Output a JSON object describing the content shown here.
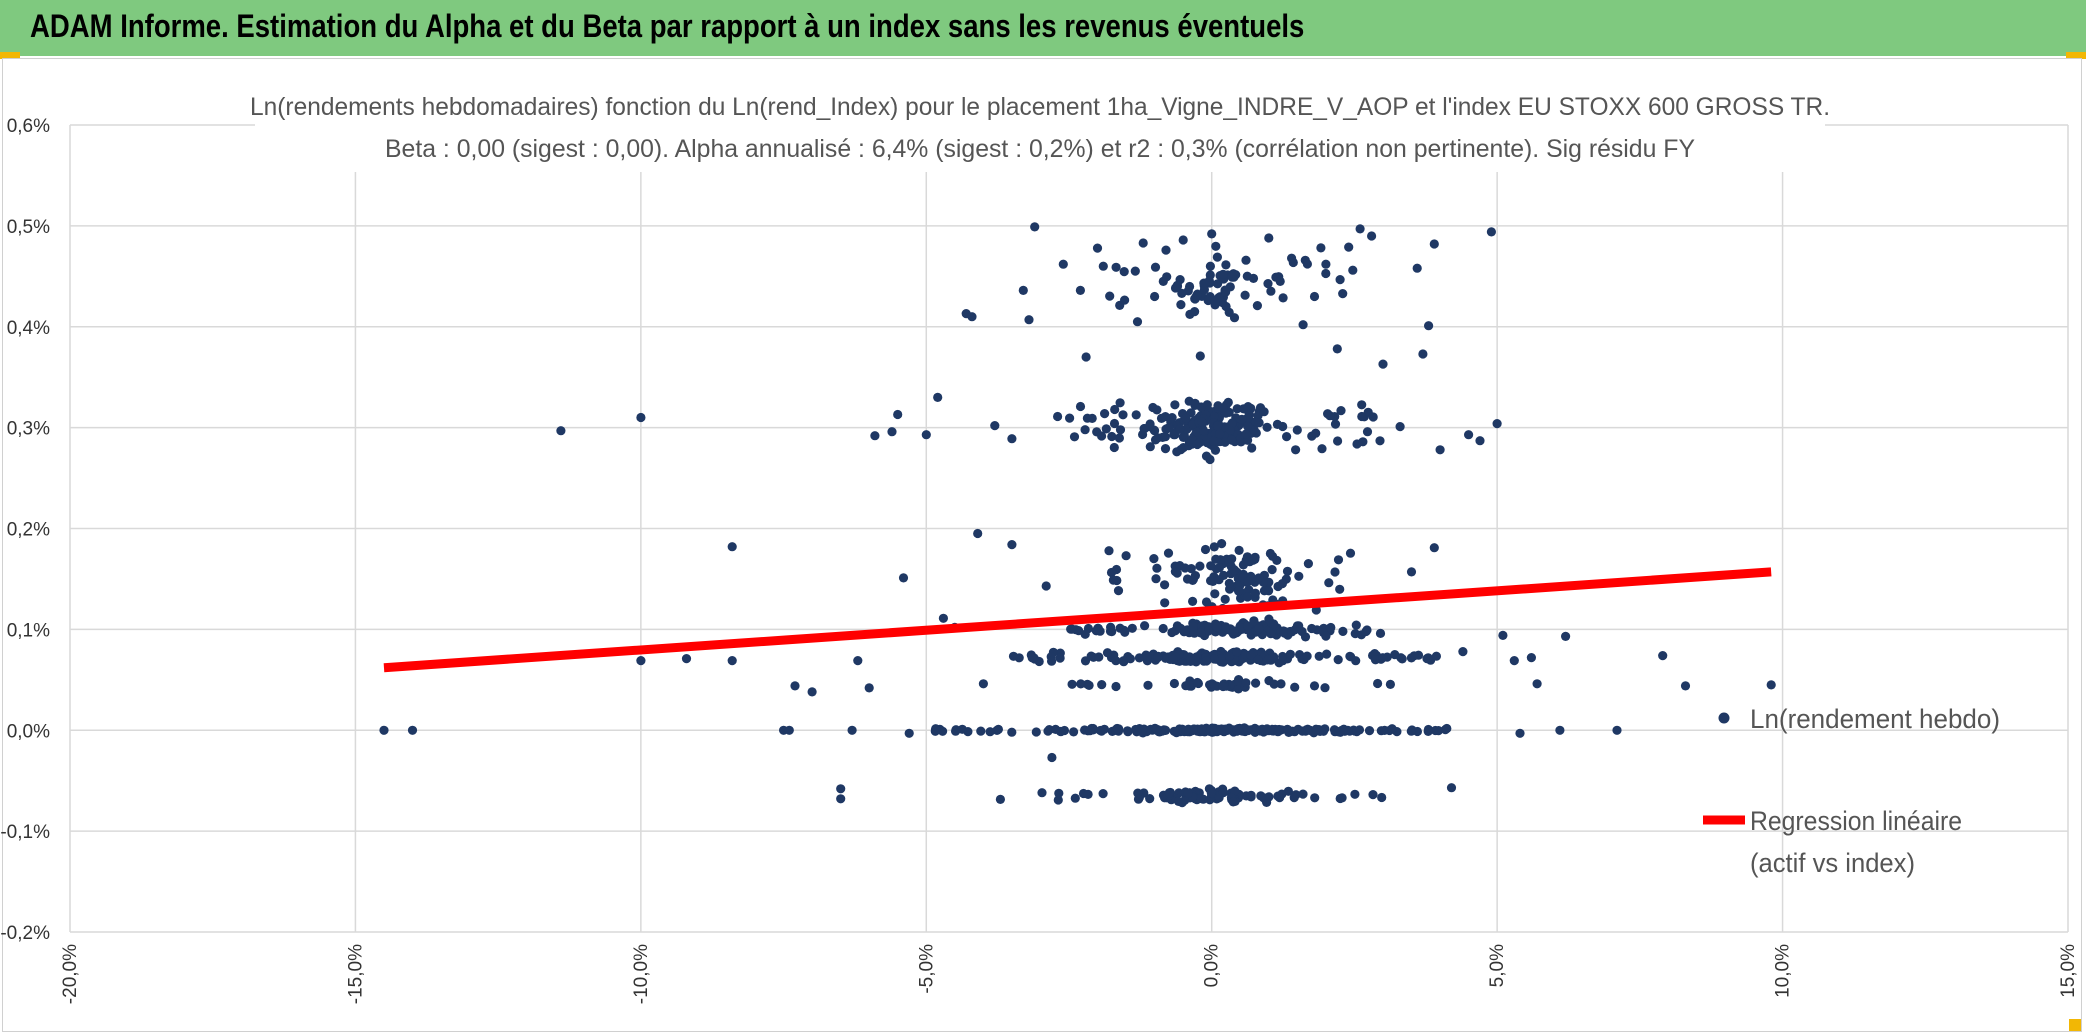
{
  "header": {
    "title": "ADAM Informe. Estimation du Alpha et du Beta par rapport à un index sans les revenus éventuels"
  },
  "chart_data": {
    "type": "scatter",
    "title": "Ln(rendements hebdomadaires) fonction du Ln(rend_Index) pour le placement 1ha_Vigne_INDRE_V_AOP et l'index EU STOXX 600 GROSS TR.",
    "subtitle": "Beta : 0,00 (sigest : 0,00). Alpha annualisé : 6,4% (sigest : 0,2%) et r2 : 0,3% (corrélation non pertinente). Sig résidu FY",
    "xlabel": "",
    "ylabel": "",
    "xlim": [
      -0.2,
      0.15
    ],
    "ylim": [
      -0.002,
      0.006
    ],
    "grid": true,
    "x_ticks": [
      -0.2,
      -0.15,
      -0.1,
      -0.05,
      0.0,
      0.05,
      0.1,
      0.15
    ],
    "x_tick_labels": [
      "-20,0%",
      "-15,0%",
      "-10,0%",
      "-5,0%",
      "0,0%",
      "5,0%",
      "10,0%",
      "15,0%"
    ],
    "y_ticks": [
      -0.002,
      -0.001,
      0.0,
      0.001,
      0.002,
      0.003,
      0.004,
      0.005,
      0.006
    ],
    "y_tick_labels": [
      "-0,2%",
      "-0,1%",
      "0,0%",
      "0,1%",
      "0,2%",
      "0,3%",
      "0,4%",
      "0,5%",
      "0,6%"
    ],
    "legend_position": "right",
    "series": [
      {
        "name": "Ln(rendement hebdo)",
        "kind": "scatter",
        "color": "#1f3864",
        "points": [
          [
            -0.145,
            0.0
          ],
          [
            -0.14,
            0.0
          ],
          [
            -0.114,
            0.00297
          ],
          [
            -0.1,
            0.0031
          ],
          [
            -0.1,
            0.00069
          ],
          [
            -0.092,
            0.00071
          ],
          [
            -0.084,
            0.00182
          ],
          [
            -0.084,
            0.00069
          ],
          [
            -0.075,
            0.0
          ],
          [
            -0.074,
            0.0
          ],
          [
            -0.073,
            0.00044
          ],
          [
            -0.07,
            0.00038
          ],
          [
            -0.065,
            -0.00068
          ],
          [
            -0.065,
            -0.00058
          ],
          [
            -0.063,
            0.0
          ],
          [
            -0.062,
            0.00069
          ],
          [
            -0.06,
            0.00042
          ],
          [
            -0.059,
            0.00292
          ],
          [
            -0.056,
            0.00296
          ],
          [
            -0.055,
            0.00313
          ],
          [
            -0.054,
            0.00151
          ],
          [
            -0.053,
            -3e-05
          ],
          [
            -0.05,
            0.00293
          ],
          [
            -0.048,
            0.0033
          ],
          [
            -0.047,
            0.00111
          ],
          [
            -0.045,
            0.00102
          ],
          [
            -0.043,
            0.00413
          ],
          [
            -0.042,
            0.0041
          ],
          [
            -0.041,
            0.00195
          ],
          [
            -0.04,
            0.00046
          ],
          [
            -0.038,
            0.00302
          ],
          [
            -0.035,
            0.00289
          ],
          [
            -0.035,
            0.00184
          ],
          [
            -0.033,
            0.00436
          ],
          [
            -0.032,
            0.00407
          ],
          [
            -0.031,
            0.00499
          ],
          [
            -0.029,
            0.00143
          ],
          [
            -0.028,
            -0.00027
          ],
          [
            -0.027,
            0.00311
          ],
          [
            -0.026,
            0.00462
          ],
          [
            -0.023,
            0.00436
          ],
          [
            -0.022,
            0.0037
          ],
          [
            -0.02,
            0.00478
          ],
          [
            -0.019,
            0.0046
          ],
          [
            -0.018,
            0.00178
          ],
          [
            -0.017,
            0.00318
          ],
          [
            -0.015,
            0.00173
          ],
          [
            -0.013,
            0.00405
          ],
          [
            -0.012,
            0.00483
          ],
          [
            -0.01,
            0.0043
          ],
          [
            -0.008,
            0.00476
          ],
          [
            -0.006,
            0.0044
          ],
          [
            -0.005,
            0.00486
          ],
          [
            -0.003,
            0.00415
          ],
          [
            -0.002,
            0.00371
          ],
          [
            0.0,
            0.00492
          ],
          [
            0.002,
            0.00452
          ],
          [
            0.004,
            0.00409
          ],
          [
            0.006,
            0.00466
          ],
          [
            0.008,
            0.00421
          ],
          [
            0.01,
            0.00488
          ],
          [
            0.012,
            0.00445
          ],
          [
            0.014,
            0.00468
          ],
          [
            0.016,
            0.00402
          ],
          [
            0.018,
            0.0043
          ],
          [
            0.02,
            0.00462
          ],
          [
            0.022,
            0.00378
          ],
          [
            0.024,
            0.00479
          ],
          [
            0.026,
            0.00497
          ],
          [
            0.028,
            0.0049
          ],
          [
            0.03,
            0.00363
          ],
          [
            0.033,
            0.00301
          ],
          [
            0.035,
            0.00157
          ],
          [
            0.036,
            0.00458
          ],
          [
            0.037,
            0.00373
          ],
          [
            0.038,
            0.00401
          ],
          [
            0.039,
            0.00181
          ],
          [
            0.039,
            0.00482
          ],
          [
            0.04,
            0.00278
          ],
          [
            0.042,
            -0.00057
          ],
          [
            0.044,
            0.00078
          ],
          [
            0.045,
            0.00293
          ],
          [
            0.047,
            0.00287
          ],
          [
            0.049,
            0.00494
          ],
          [
            0.05,
            0.00304
          ],
          [
            0.051,
            0.00094
          ],
          [
            0.053,
            0.00069
          ],
          [
            0.054,
            -3e-05
          ],
          [
            0.056,
            0.00072
          ],
          [
            0.057,
            0.00046
          ],
          [
            0.061,
            0.0
          ],
          [
            0.062,
            0.00093
          ],
          [
            0.071,
            0.0
          ],
          [
            0.079,
            0.00074
          ],
          [
            0.083,
            0.00044
          ],
          [
            0.098,
            0.00045
          ]
        ],
        "clusters": [
          {
            "y": 0.0,
            "x_range": [
              -0.05,
              0.045
            ],
            "count": 260,
            "spread": 2e-05,
            "peak_x": 0.0
          },
          {
            "y": 0.00072,
            "x_range": [
              -0.035,
              0.04
            ],
            "count": 190,
            "spread": 5e-05,
            "peak_x": 0.0
          },
          {
            "y": 0.001,
            "x_range": [
              -0.025,
              0.03
            ],
            "count": 150,
            "spread": 6e-05,
            "peak_x": 0.005
          },
          {
            "y": 0.00045,
            "x_range": [
              -0.025,
              0.035
            ],
            "count": 45,
            "spread": 4e-05,
            "peak_x": 0.0
          },
          {
            "y": 0.0015,
            "x_range": [
              -0.02,
              0.025
            ],
            "count": 110,
            "spread": 0.0003,
            "peak_x": 0.005
          },
          {
            "y": 0.003,
            "x_range": [
              -0.025,
              0.03
            ],
            "count": 220,
            "spread": 0.00025,
            "peak_x": 0.0
          },
          {
            "y": 0.0044,
            "x_range": [
              -0.018,
              0.025
            ],
            "count": 70,
            "spread": 0.0003,
            "peak_x": 0.0
          },
          {
            "y": -0.00065,
            "x_range": [
              -0.04,
              0.03
            ],
            "count": 90,
            "spread": 6e-05,
            "peak_x": 0.0
          }
        ]
      },
      {
        "name": "Regression linéaire (actif vs index)",
        "kind": "line",
        "color": "#ff0000",
        "x": [
          -0.145,
          0.098
        ],
        "y": [
          0.00062,
          0.00157
        ]
      }
    ],
    "legend": {
      "scatter_label": "Ln(rendement hebdo)",
      "line_label_1": "Regression linéaire",
      "line_label_2": "(actif vs index)"
    }
  }
}
